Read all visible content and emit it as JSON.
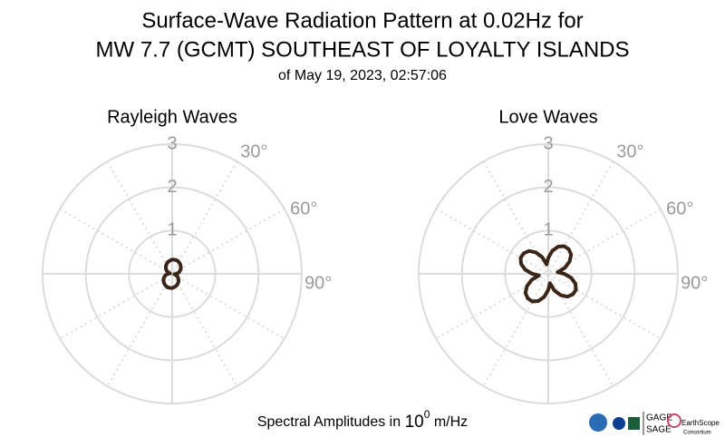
{
  "header": {
    "title": [
      "Surface-Wave Radiation Pattern at 0.02Hz for",
      "MW 7.7 (GCMT) SOUTHEAST OF LOYALTY ISLANDS"
    ],
    "subtitle": "of May 19, 2023, 02:57:06"
  },
  "footer": {
    "label": [
      "Spectral Amplitudes in ",
      "10",
      "0",
      " m/Hz"
    ]
  },
  "logos": {
    "gage": "GAGE",
    "sage": "SAGE",
    "earthscope": "EarthScope",
    "consortium": "Consortium"
  },
  "chart_data": [
    {
      "type": "polar",
      "title": "Rayleigh Waves",
      "color": "#3b2516",
      "theta": [
        0,
        10,
        20,
        30,
        40,
        50,
        60,
        70,
        80,
        90,
        100,
        110,
        120,
        130,
        140,
        150,
        160,
        170,
        180,
        190,
        200,
        210,
        220,
        230,
        240,
        250,
        260,
        270,
        280,
        290,
        300,
        310,
        320,
        330,
        340,
        350
      ],
      "values": [
        0.33,
        0.33,
        0.33,
        0.31,
        0.29,
        0.26,
        0.23,
        0.19,
        0.15,
        0.1,
        0.05,
        0.1,
        0.15,
        0.19,
        0.23,
        0.26,
        0.29,
        0.31,
        0.33,
        0.33,
        0.33,
        0.31,
        0.29,
        0.26,
        0.23,
        0.19,
        0.15,
        0.1,
        0.05,
        0.1,
        0.15,
        0.19,
        0.23,
        0.26,
        0.29,
        0.31
      ],
      "rlim": [
        0,
        3
      ],
      "rticks": [
        1,
        2,
        3
      ],
      "thetaticks": [
        {
          "value": 30,
          "label": "30°"
        },
        {
          "value": 60,
          "label": "60°"
        },
        {
          "value": 90,
          "label": "90°"
        }
      ]
    },
    {
      "type": "polar",
      "title": "Love Waves",
      "color": "#3b2516",
      "theta": [
        0,
        10,
        20,
        30,
        40,
        50,
        60,
        70,
        80,
        90,
        100,
        110,
        120,
        130,
        140,
        150,
        160,
        170,
        180,
        190,
        200,
        210,
        220,
        230,
        240,
        250,
        260,
        270,
        280,
        290,
        300,
        310,
        320,
        330,
        340,
        350
      ],
      "values": [
        0.37,
        0.54,
        0.67,
        0.74,
        0.74,
        0.69,
        0.57,
        0.41,
        0.22,
        0.37,
        0.54,
        0.67,
        0.74,
        0.74,
        0.69,
        0.57,
        0.41,
        0.22,
        0.37,
        0.54,
        0.67,
        0.74,
        0.74,
        0.69,
        0.57,
        0.41,
        0.22,
        0.37,
        0.54,
        0.67,
        0.74,
        0.74,
        0.69,
        0.57,
        0.41,
        0.22
      ],
      "rlim": [
        0,
        3
      ],
      "rticks": [
        1,
        2,
        3
      ],
      "thetaticks": [
        {
          "value": 30,
          "label": "30°"
        },
        {
          "value": 60,
          "label": "60°"
        },
        {
          "value": 90,
          "label": "90°"
        }
      ]
    }
  ]
}
